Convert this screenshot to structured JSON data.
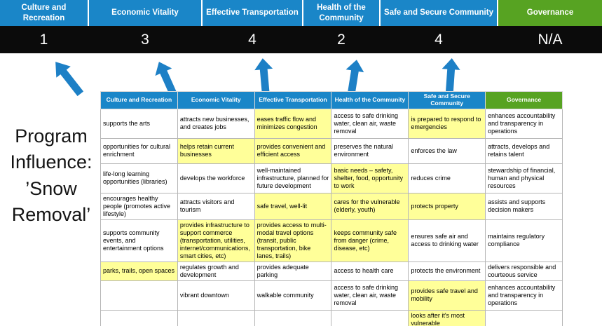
{
  "program_title": "Program Influence: ’Snow Removal’",
  "colors": {
    "blue": "#1a86c8",
    "green": "#57a322",
    "yellow": "#ffff99",
    "band": "#0b0b0b",
    "arrow": "#1d80c6"
  },
  "banner": {
    "columns": [
      {
        "id": "culture-and-recreation",
        "label": "Culture and Recreation",
        "score": "1",
        "color": "blue"
      },
      {
        "id": "economic-vitality",
        "label": "Economic Vitality",
        "score": "3",
        "color": "blue"
      },
      {
        "id": "effective-transportation",
        "label": "Effective Transportation",
        "score": "4",
        "color": "blue"
      },
      {
        "id": "health-of-the-community",
        "label": "Health of the Community",
        "score": "2",
        "color": "blue"
      },
      {
        "id": "safe-and-secure-community",
        "label": "Safe and Secure Community",
        "score": "4",
        "color": "blue"
      },
      {
        "id": "governance",
        "label": "Governance",
        "score": "N/A",
        "color": "green"
      }
    ]
  },
  "matrix": {
    "headers": [
      {
        "id": "culture-and-recreation",
        "label": "Culture and Recreation",
        "color": "blue"
      },
      {
        "id": "economic-vitality",
        "label": "Economic Vitality",
        "color": "blue"
      },
      {
        "id": "effective-transportation",
        "label": "Effective Transportation",
        "color": "blue"
      },
      {
        "id": "health-of-the-community",
        "label": "Health of the Community",
        "color": "blue"
      },
      {
        "id": "safe-and-secure-community",
        "label": "Safe and Secure Community",
        "color": "blue"
      },
      {
        "id": "governance",
        "label": "Governance",
        "color": "green"
      }
    ],
    "rows": [
      [
        {
          "text": "supports the arts",
          "highlight": false
        },
        {
          "text": "attracts new businesses, and creates jobs",
          "highlight": false
        },
        {
          "text": "eases traffic flow and minimizes congestion",
          "highlight": true
        },
        {
          "text": "access to safe drinking water, clean air, waste removal",
          "highlight": false
        },
        {
          "text": "is prepared to respond to emergencies",
          "highlight": true
        },
        {
          "text": "enhances accountability and transparency in operations",
          "highlight": false
        }
      ],
      [
        {
          "text": "opportunities for cultural enrichment",
          "highlight": false
        },
        {
          "text": "helps retain current businesses",
          "highlight": true
        },
        {
          "text": "provides convenient and efficient access",
          "highlight": true
        },
        {
          "text": "preserves the natural environment",
          "highlight": false
        },
        {
          "text": "enforces the law",
          "highlight": false
        },
        {
          "text": "attracts, develops and retains talent",
          "highlight": false
        }
      ],
      [
        {
          "text": "life-long learning opportunities (libraries)",
          "highlight": false
        },
        {
          "text": "develops the workforce",
          "highlight": false
        },
        {
          "text": "well-maintained infrastructure, planned for future development",
          "highlight": false
        },
        {
          "text": "basic needs – safety, shelter, food, opportunity to work",
          "highlight": true
        },
        {
          "text": "reduces crime",
          "highlight": false
        },
        {
          "text": "stewardship of financial, human and physical resources",
          "highlight": false
        }
      ],
      [
        {
          "text": "encourages healthy people (promotes active lifestyle)",
          "highlight": false
        },
        {
          "text": "attracts visitors and tourism",
          "highlight": false
        },
        {
          "text": "safe travel, well-lit",
          "highlight": true
        },
        {
          "text": "cares for the vulnerable (elderly, youth)",
          "highlight": true
        },
        {
          "text": "protects property",
          "highlight": true
        },
        {
          "text": "assists and supports decision makers",
          "highlight": false
        }
      ],
      [
        {
          "text": "supports community events, and entertainment options",
          "highlight": false
        },
        {
          "text": "provides infrastructure to support commerce (transportation, utilities, internet/communications, smart cities, etc)",
          "highlight": true
        },
        {
          "text": "provides access to multi-modal travel options (transit, public transportation, bike lanes, trails)",
          "highlight": true
        },
        {
          "text": "keeps community safe from danger (crime, disease, etc)",
          "highlight": true
        },
        {
          "text": "ensures safe air and access to drinking water",
          "highlight": false
        },
        {
          "text": "maintains regulatory compliance",
          "highlight": false
        }
      ],
      [
        {
          "text": "parks, trails, open spaces",
          "highlight": true
        },
        {
          "text": "regulates growth and development",
          "highlight": false
        },
        {
          "text": "provides adequate parking",
          "highlight": false
        },
        {
          "text": "access to health care",
          "highlight": false
        },
        {
          "text": "protects the environment",
          "highlight": false
        },
        {
          "text": "delivers responsible and courteous service",
          "highlight": false
        }
      ],
      [
        {
          "text": "",
          "highlight": false
        },
        {
          "text": "vibrant downtown",
          "highlight": false
        },
        {
          "text": "walkable community",
          "highlight": false
        },
        {
          "text": "access to safe drinking water, clean air, waste removal",
          "highlight": false
        },
        {
          "text": "provides safe travel and mobility",
          "highlight": true
        },
        {
          "text": "enhances accountability and transparency in operations",
          "highlight": false
        }
      ],
      [
        {
          "text": "",
          "highlight": false
        },
        {
          "text": "",
          "highlight": false
        },
        {
          "text": "",
          "highlight": false
        },
        {
          "text": "",
          "highlight": false
        },
        {
          "text": "looks after it's most vulnerable",
          "highlight": true
        },
        {
          "text": "",
          "highlight": false
        }
      ]
    ]
  }
}
